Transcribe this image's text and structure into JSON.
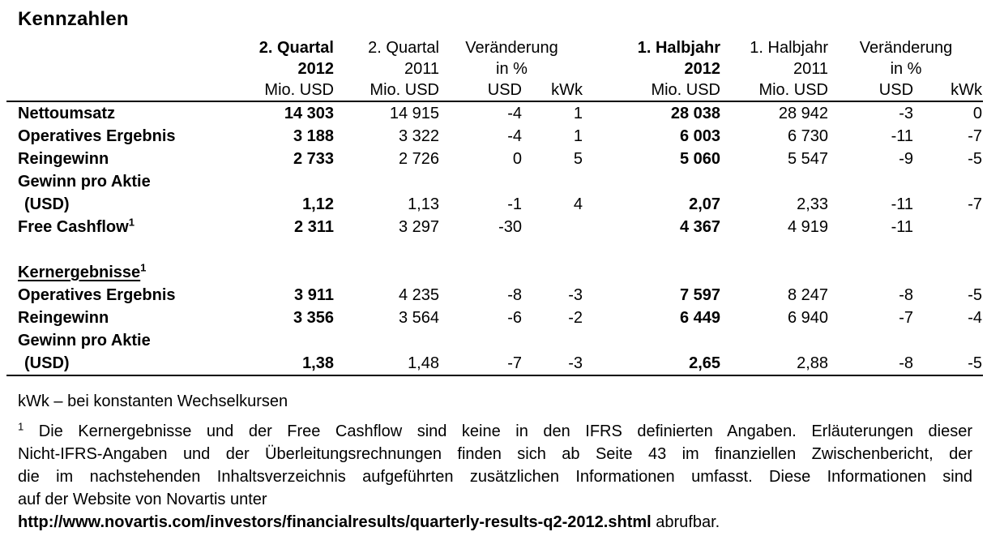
{
  "page": {
    "title": "Kennzahlen"
  },
  "table": {
    "columns": [
      {
        "line1": "2. Quartal",
        "line2": "2012",
        "unit": "Mio. USD"
      },
      {
        "line1": "2. Quartal",
        "line2": "2011",
        "unit": "Mio. USD"
      },
      {
        "line1": "Veränderung",
        "line2": "in %",
        "unit_usd": "USD",
        "unit_kwk": "kWk"
      },
      {
        "line1": "1. Halbjahr",
        "line2": "2012",
        "unit": "Mio. USD"
      },
      {
        "line1": "1. Halbjahr",
        "line2": "2011",
        "unit": "Mio. USD"
      },
      {
        "line1": "Veränderung",
        "line2": "in %",
        "unit_usd": "USD",
        "unit_kwk": "kWk"
      }
    ],
    "rows": [
      {
        "label": "Nettoumsatz",
        "values": [
          "14 303",
          "14 915",
          "-4",
          "1",
          "28 038",
          "28 942",
          "-3",
          "0"
        ]
      },
      {
        "label": "Operatives Ergebnis",
        "values": [
          "3 188",
          "3 322",
          "-4",
          "1",
          "6 003",
          "6 730",
          "-11",
          "-7"
        ]
      },
      {
        "label": "Reingewinn",
        "values": [
          "2 733",
          "2 726",
          "0",
          "5",
          "5 060",
          "5 547",
          "-9",
          "-5"
        ]
      },
      {
        "label": "Gewinn pro Aktie",
        "values": [
          "",
          "",
          "",
          "",
          "",
          "",
          "",
          ""
        ]
      },
      {
        "label": "(USD)",
        "values": [
          "1,12",
          "1,13",
          "-1",
          "4",
          "2,07",
          "2,33",
          "-11",
          "-7"
        ]
      },
      {
        "label": "Free Cashflow",
        "sup": "1",
        "values": [
          "2 311",
          "3 297",
          "-30",
          "",
          "4 367",
          "4 919",
          "-11",
          ""
        ]
      },
      {
        "label": "Kernergebnisse",
        "sup": "1",
        "values": [
          "",
          "",
          "",
          "",
          "",
          "",
          "",
          ""
        ]
      },
      {
        "label": "Operatives Ergebnis",
        "values": [
          "3 911",
          "4 235",
          "-8",
          "-3",
          "7 597",
          "8 247",
          "-8",
          "-5"
        ]
      },
      {
        "label": "Reingewinn",
        "values": [
          "3 356",
          "3 564",
          "-6",
          "-2",
          "6 449",
          "6 940",
          "-7",
          "-4"
        ]
      },
      {
        "label": "Gewinn pro Aktie",
        "values": [
          "",
          "",
          "",
          "",
          "",
          "",
          "",
          ""
        ]
      },
      {
        "label": "(USD)",
        "values": [
          "1,38",
          "1,48",
          "-7",
          "-3",
          "2,65",
          "2,88",
          "-8",
          "-5"
        ]
      }
    ]
  },
  "notes": {
    "kwk": "kWk – bei konstanten Wechselkursen"
  },
  "footnote": {
    "marker": "1",
    "lines": [
      "Die Kernergebnisse und der Free Cashflow sind keine in den IFRS definierten Angaben. Erläuterungen dieser",
      "Nicht-IFRS-Angaben und der Überleitungsrechnungen finden sich ab Seite 43 im finanziellen Zwischenbericht, der",
      "die im nachstehenden Inhaltsverzeichnis aufgeführten zusätzlichen Informationen umfasst. Diese Informationen sind",
      "auf der Website von Novartis unter"
    ],
    "url": "http://www.novartis.com/investors/financialresults/quarterly-results-q2-2012.shtml",
    "suffix": "abrufbar."
  }
}
